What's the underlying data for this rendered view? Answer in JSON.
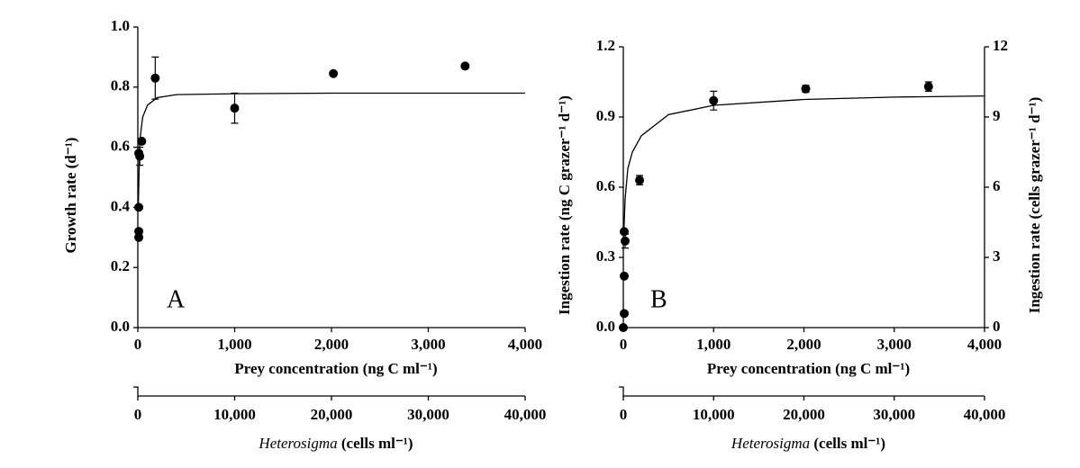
{
  "chart_data": [
    {
      "type": "scatter",
      "panel_label": "A",
      "xlabel": "Prey concentration (ng C ml⁻¹)",
      "ylabel": "Growth rate (d⁻¹)",
      "x2label_italic": "Heterosigma",
      "x2label": "(cells ml⁻¹)",
      "xlim": [
        0,
        4000
      ],
      "xticks": [
        0,
        {
          "value": 1000,
          "label": "1,000"
        },
        {
          "value": 2000,
          "label": "2,000"
        },
        {
          "value": 3000,
          "label": "3,000"
        },
        {
          "value": 4000,
          "label": "4,000"
        }
      ],
      "ylim": [
        0,
        1
      ],
      "yticks": [
        {
          "value": 0,
          "label": "0.0"
        },
        0.2,
        0.4,
        0.6,
        0.8,
        {
          "value": 1,
          "label": "1.0"
        }
      ],
      "x2lim": [
        0,
        40000
      ],
      "x2ticks": [
        0,
        {
          "value": 10000,
          "label": "10,000"
        },
        {
          "value": 20000,
          "label": "20,000"
        },
        {
          "value": 30000,
          "label": "30,000"
        },
        {
          "value": 40000,
          "label": "40,000"
        }
      ],
      "series": [
        {
          "color": "#000000",
          "x": [
            10,
            10,
            10,
            10,
            20,
            40,
            180,
            1000,
            2020,
            3380
          ],
          "values": [
            0.3,
            0.32,
            0.4,
            0.58,
            0.57,
            0.62,
            0.83,
            0.73,
            0.845,
            0.87
          ],
          "errors": [
            null,
            null,
            null,
            null,
            0.03,
            null,
            0.07,
            0.05,
            null,
            null
          ]
        },
        {
          "color": "#000000",
          "line": true,
          "x": [
            5,
            20,
            50,
            100,
            200,
            400,
            1000,
            2000,
            3000,
            4000
          ],
          "values": [
            0.4,
            0.62,
            0.7,
            0.74,
            0.765,
            0.775,
            0.778,
            0.78,
            0.78,
            0.78
          ]
        }
      ]
    },
    {
      "type": "scatter",
      "panel_label": "B",
      "xlabel": "Prey concentration (ng C ml⁻¹)",
      "ylabel": "Ingestion rate (ng C grazer⁻¹ d⁻¹)",
      "y2label": "Ingestion rate (cells grazer⁻¹ d⁻¹)",
      "x2label_italic": "Heterosigma",
      "x2label": "(cells ml⁻¹)",
      "xlim": [
        0,
        4000
      ],
      "xticks": [
        0,
        {
          "value": 1000,
          "label": "1,000"
        },
        {
          "value": 2000,
          "label": "2,000"
        },
        {
          "value": 3000,
          "label": "3,000"
        },
        {
          "value": 4000,
          "label": "4,000"
        }
      ],
      "ylim": [
        0,
        1.2
      ],
      "yticks": [
        {
          "value": 0,
          "label": "0.0"
        },
        0.3,
        0.6,
        0.9,
        1.2
      ],
      "y2lim": [
        0,
        12
      ],
      "y2ticks": [
        0,
        3,
        6,
        9,
        12
      ],
      "x2lim": [
        0,
        40000
      ],
      "x2ticks": [
        0,
        {
          "value": 10000,
          "label": "10,000"
        },
        {
          "value": 20000,
          "label": "20,000"
        },
        {
          "value": 30000,
          "label": "30,000"
        },
        {
          "value": 40000,
          "label": "40,000"
        }
      ],
      "series": [
        {
          "color": "#000000",
          "x": [
            0,
            10,
            10,
            10,
            20,
            180,
            1000,
            2020,
            3380
          ],
          "values": [
            0.0,
            0.06,
            0.22,
            0.41,
            0.37,
            0.63,
            0.97,
            1.02,
            1.03
          ],
          "errors": [
            null,
            null,
            null,
            null,
            0.03,
            0.02,
            0.04,
            0.015,
            0.02
          ]
        },
        {
          "color": "#000000",
          "line": true,
          "x": [
            5,
            20,
            50,
            100,
            200,
            500,
            1000,
            2000,
            3000,
            4000
          ],
          "values": [
            0.4,
            0.55,
            0.68,
            0.75,
            0.82,
            0.91,
            0.95,
            0.975,
            0.985,
            0.99
          ]
        }
      ]
    }
  ]
}
